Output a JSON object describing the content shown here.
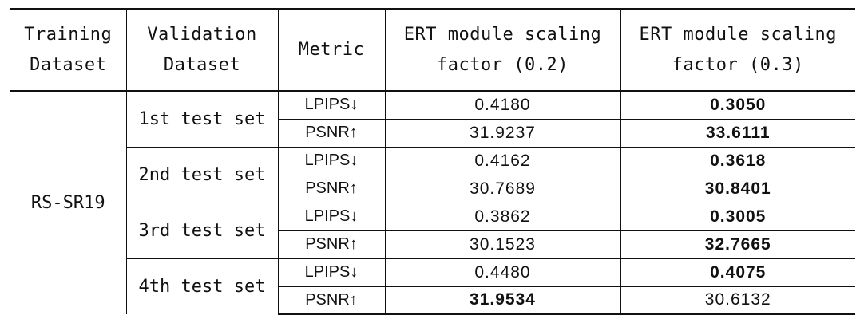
{
  "header": {
    "training_dataset": "Training\nDataset",
    "validation_dataset": "Validation\nDataset",
    "metric": "Metric",
    "col_02": "ERT module scaling\nfactor (0.2)",
    "col_03": "ERT module scaling\nfactor (0.3)"
  },
  "training_dataset": "RS-SR19",
  "groups": [
    {
      "name": "1st test set",
      "rows": [
        {
          "metric": "LPIPS↓",
          "v02": "0.4180",
          "v03": "0.3050",
          "bold02": false,
          "bold03": true
        },
        {
          "metric": "PSNR↑",
          "v02": "31.9237",
          "v03": "33.6111",
          "bold02": false,
          "bold03": true
        }
      ]
    },
    {
      "name": "2nd test set",
      "rows": [
        {
          "metric": "LPIPS↓",
          "v02": "0.4162",
          "v03": "0.3618",
          "bold02": false,
          "bold03": true
        },
        {
          "metric": "PSNR↑",
          "v02": "30.7689",
          "v03": "30.8401",
          "bold02": false,
          "bold03": true
        }
      ]
    },
    {
      "name": "3rd test set",
      "rows": [
        {
          "metric": "LPIPS↓",
          "v02": "0.3862",
          "v03": "0.3005",
          "bold02": false,
          "bold03": true
        },
        {
          "metric": "PSNR↑",
          "v02": "30.1523",
          "v03": "32.7665",
          "bold02": false,
          "bold03": true
        }
      ]
    },
    {
      "name": "4th test set",
      "rows": [
        {
          "metric": "LPIPS↓",
          "v02": "0.4480",
          "v03": "0.4075",
          "bold02": false,
          "bold03": true
        },
        {
          "metric": "PSNR↑",
          "v02": "31.9534",
          "v03": "30.6132",
          "bold02": true,
          "bold03": false
        }
      ]
    }
  ]
}
